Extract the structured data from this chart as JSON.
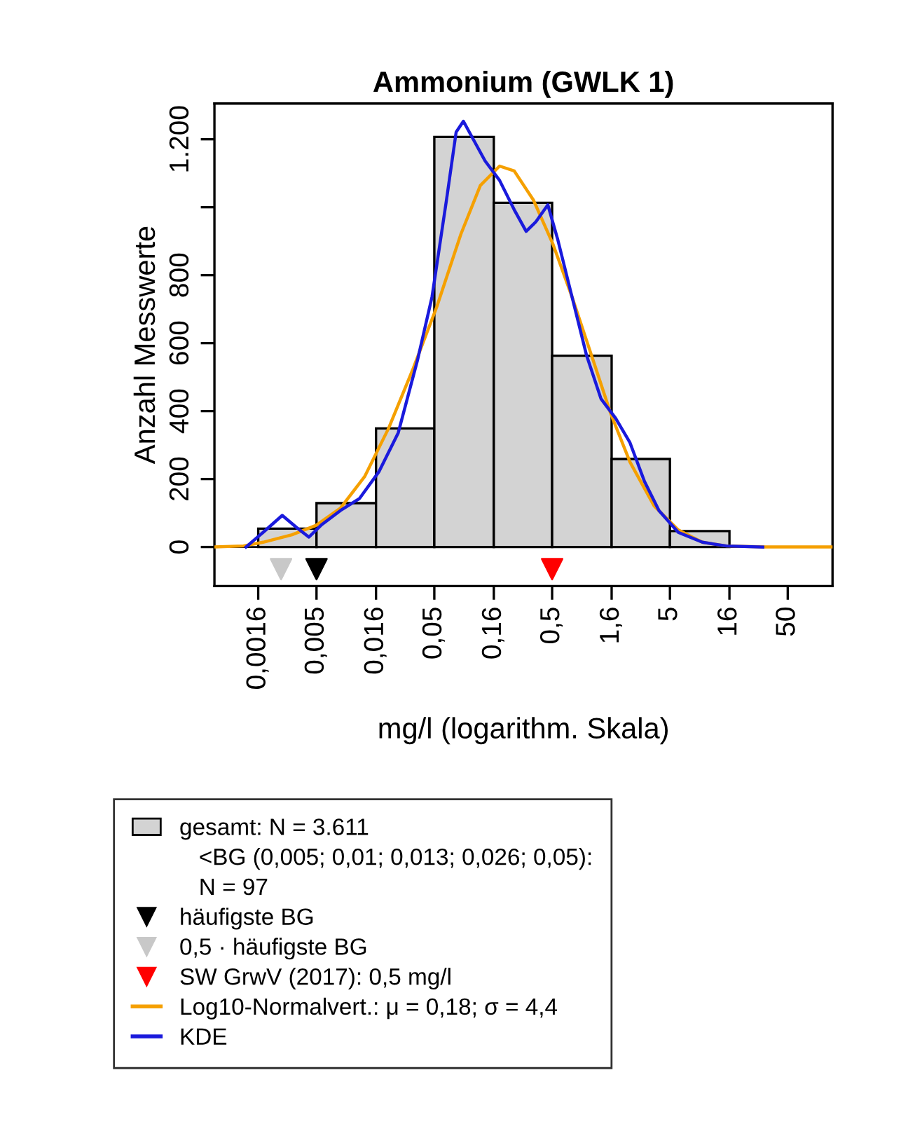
{
  "chart_data": {
    "type": "histogram",
    "title": "Ammonium (GWLK 1)",
    "xlabel": "mg/l (logarithm. Skala)",
    "ylabel": "Anzahl Messwerte",
    "log": "x",
    "bins": [
      0.0016,
      0.005,
      0.016,
      0.05,
      0.16,
      0.5,
      1.6,
      5,
      16
    ],
    "xlim": [
      0.00068,
      120
    ],
    "xticks": [
      {
        "value": 0.0016,
        "label": "0,0016"
      },
      {
        "value": 0.005,
        "label": "0,005"
      },
      {
        "value": 0.016,
        "label": "0,016"
      },
      {
        "value": 0.05,
        "label": "0,05"
      },
      {
        "value": 0.16,
        "label": "0,16"
      },
      {
        "value": 0.5,
        "label": "0,5"
      },
      {
        "value": 1.6,
        "label": "1,6"
      },
      5,
      16,
      50
    ],
    "ylim": [
      -115,
      1305
    ],
    "yticks": [
      0,
      200,
      400,
      600,
      800,
      {
        "value": 1000,
        "label": null
      },
      {
        "value": 1200,
        "label": "1.200"
      }
    ],
    "legend": "bottom",
    "annotations": [
      "<BG (0,005; 0,01; 0,013; 0,026; 0,05):",
      "N = 97"
    ],
    "series": [
      {
        "name": "gesamt: N = 3.611",
        "color": "#d3d3d3",
        "values": [
          54,
          129,
          349,
          1207,
          1013,
          563,
          259,
          47
        ]
      },
      {
        "type": "scatter",
        "name": "häufigste BG",
        "color": "#000000",
        "marker": "triangle",
        "x": [
          0.005
        ],
        "values": [
          -65
        ]
      },
      {
        "type": "scatter",
        "name": "0,5 · häufigste BG",
        "color": "#c8c8c8",
        "marker": "triangle",
        "x": [
          0.0025
        ],
        "values": [
          -65
        ]
      },
      {
        "type": "scatter",
        "name": "SW GrwV (2017): 0,5 mg/l",
        "color": "#ff0000",
        "marker": "triangle",
        "x": [
          0.5
        ],
        "values": [
          -65
        ]
      },
      {
        "type": "line",
        "name": "Log10-Normalvert.: μ = 0,18; σ = 4,4",
        "color": "#f5a000",
        "x": [
          0.00068,
          0.0012,
          0.00176,
          0.0031,
          0.00497,
          0.00796,
          0.0128,
          0.0205,
          0.0327,
          0.0525,
          0.0841,
          0.123,
          0.179,
          0.238,
          0.347,
          0.506,
          0.738,
          1.08,
          1.57,
          2.29,
          3.67,
          5.89,
          9.42,
          15.1,
          32.1,
          120
        ],
        "values": [
          0,
          3,
          14,
          36,
          64,
          114,
          207,
          350,
          521,
          707,
          921,
          1064,
          1121,
          1107,
          1021,
          893,
          736,
          564,
          393,
          250,
          121,
          50,
          14,
          3,
          0,
          0
        ]
      },
      {
        "type": "line",
        "name": "KDE",
        "color": "#1a1adc",
        "x": [
          0.00126,
          0.00176,
          0.00256,
          0.0034,
          0.00431,
          0.00546,
          0.00796,
          0.0116,
          0.0169,
          0.0247,
          0.036,
          0.0478,
          0.0634,
          0.0766,
          0.0883,
          0.107,
          0.135,
          0.179,
          0.238,
          0.301,
          0.364,
          0.46,
          0.556,
          0.738,
          0.98,
          1.3,
          1.73,
          2.29,
          3.04,
          4.04,
          5.89,
          9.42,
          15.1,
          30.7
        ],
        "values": [
          0,
          43,
          93,
          57,
          29,
          64,
          107,
          143,
          221,
          336,
          550,
          736,
          1021,
          1221,
          1253,
          1200,
          1136,
          1079,
          993,
          929,
          957,
          1007,
          907,
          736,
          564,
          436,
          379,
          307,
          193,
          107,
          43,
          14,
          3,
          0
        ]
      }
    ]
  }
}
